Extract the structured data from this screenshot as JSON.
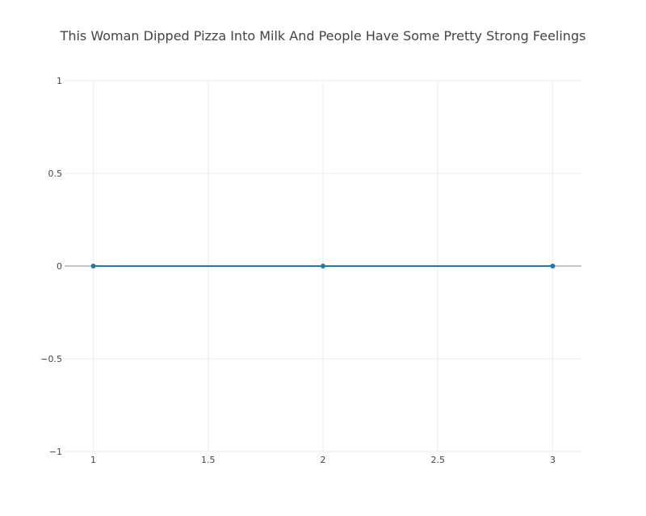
{
  "chart_data": {
    "type": "line",
    "title": "This Woman Dipped Pizza Into Milk And People Have Some Pretty Strong Feelings",
    "xlabel": "",
    "ylabel": "",
    "x": [
      1,
      2,
      3
    ],
    "series": [
      {
        "values": [
          0,
          0,
          0
        ],
        "color": "#1f77b4"
      }
    ],
    "xlim": [
      0.875,
      3.125
    ],
    "ylim": [
      -1,
      1
    ],
    "x_ticks": [
      1,
      1.5,
      2,
      2.5,
      3
    ],
    "x_tick_labels": [
      "1",
      "1.5",
      "2",
      "2.5",
      "3"
    ],
    "y_ticks": [
      -1,
      -0.5,
      0,
      0.5,
      1
    ],
    "y_tick_labels": [
      "−1",
      "−0.5",
      "0",
      "0.5",
      "1"
    ],
    "grid": true,
    "zero_line": true,
    "legend": "none"
  }
}
